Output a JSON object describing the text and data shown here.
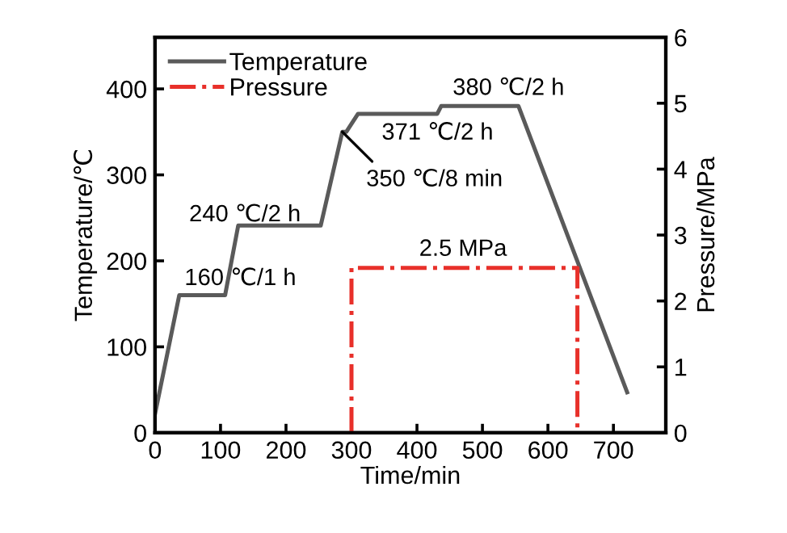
{
  "chart_data": {
    "type": "line",
    "xlabel": "Time/min",
    "ylabel": "Temperature/℃",
    "y2label": "Pressure/MPa",
    "series": [
      {
        "name": "Temperature",
        "color": "#5a5a5a",
        "line_style": "solid",
        "x": [
          0,
          37,
          107,
          127,
          253,
          286,
          292,
          310,
          431,
          437,
          555,
          721
        ],
        "values": [
          22,
          160,
          160,
          241,
          241,
          350,
          350,
          371,
          371,
          380,
          380,
          47
        ]
      },
      {
        "name": "Pressure",
        "color": "#e8302a",
        "line_style": "dashdot",
        "axis": "y2",
        "x": [
          300,
          300,
          645,
          645
        ],
        "values": [
          0,
          2.5,
          2.5,
          0
        ]
      }
    ],
    "xlim": [
      0,
      780
    ],
    "xticks": [
      0,
      100,
      200,
      300,
      400,
      500,
      600,
      700
    ],
    "ylim": [
      0,
      460
    ],
    "yticks": [
      0,
      100,
      200,
      300,
      400
    ],
    "y2lim": [
      0,
      6
    ],
    "y2ticks": [
      0,
      1,
      2,
      3,
      4,
      5,
      6
    ],
    "legend": "top left",
    "grid": false,
    "annotations": [
      "160 ℃/1 h",
      "240 ℃/2 h",
      {
        "text": "350 ℃/8 min",
        "x": 286,
        "y": 350
      },
      "371 ℃/2 h",
      "380 ℃/2 h",
      "2.5 MPa"
    ]
  }
}
